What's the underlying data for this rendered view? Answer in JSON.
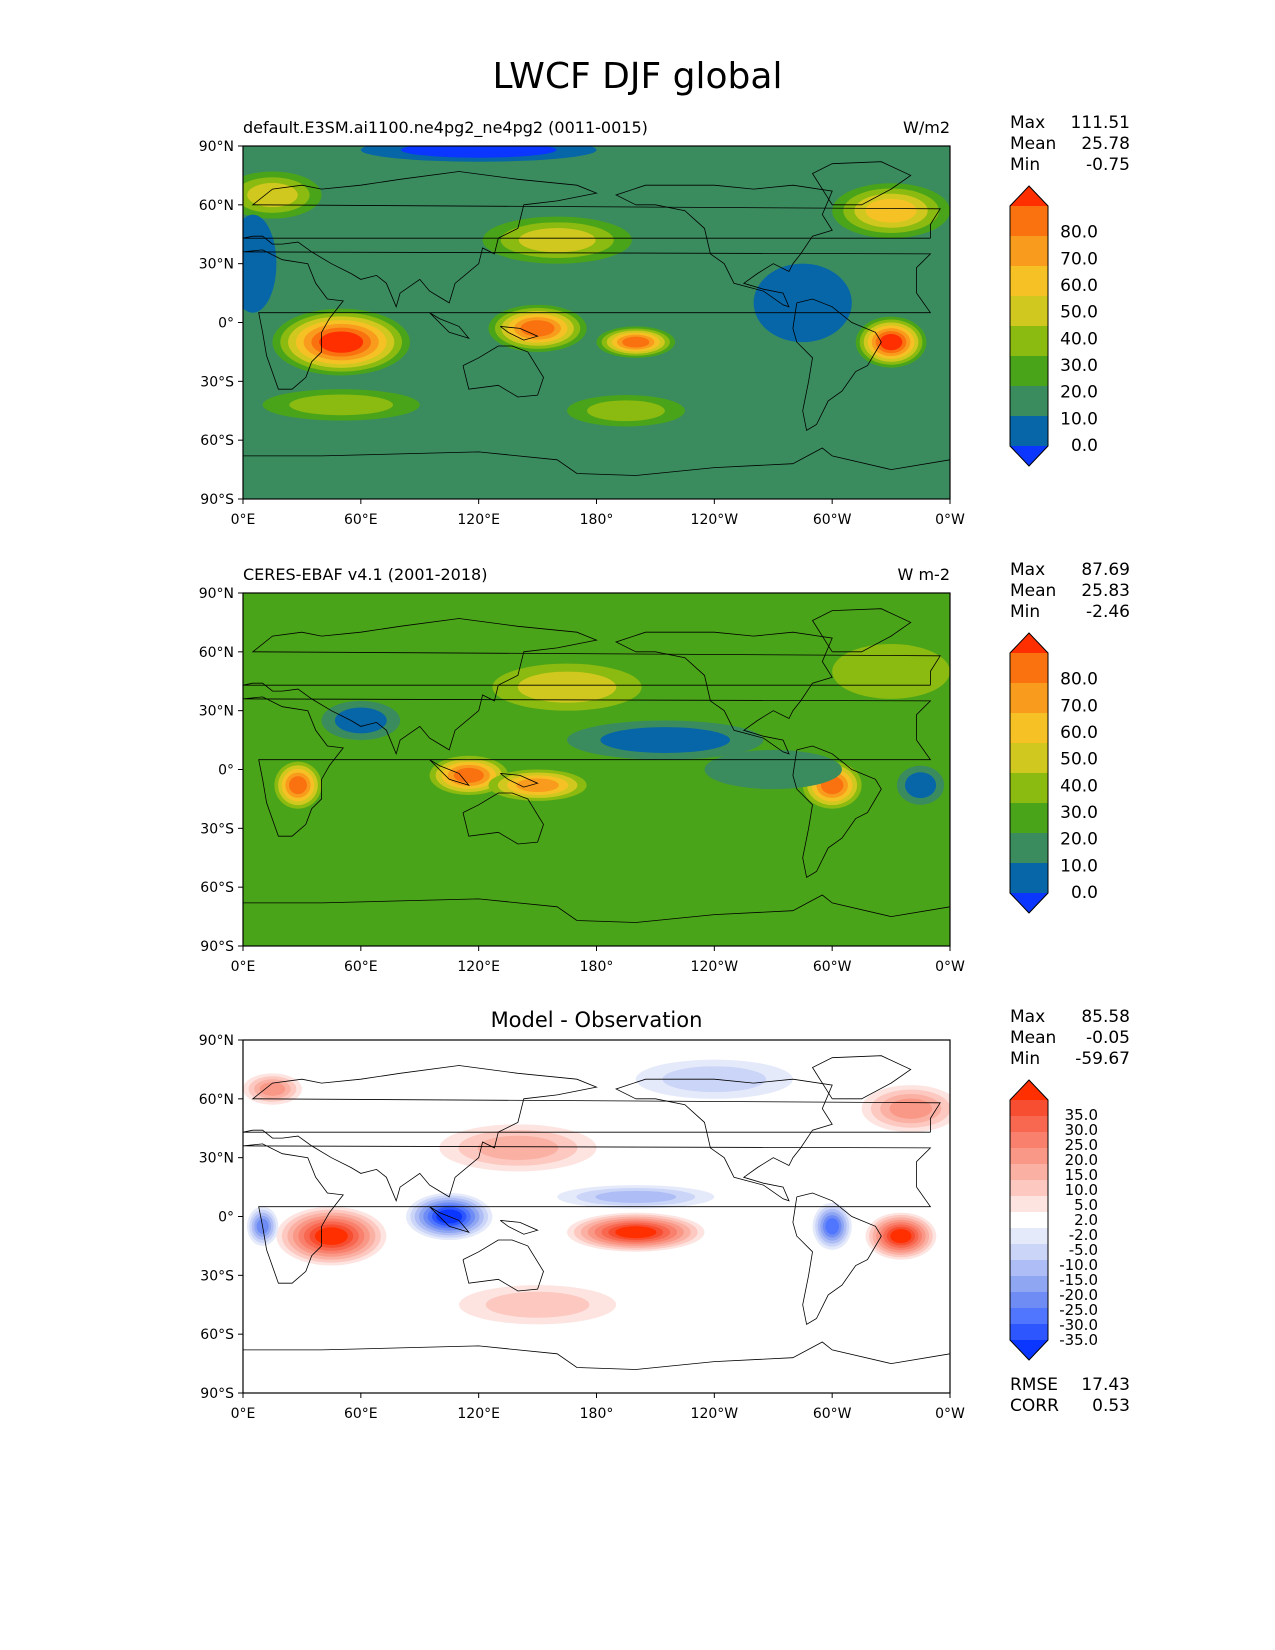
{
  "title": "LWCF DJF global",
  "colors": {
    "abs_levels": [
      "#0a36ff",
      "#0666a8",
      "#3a8c5e",
      "#4aa419",
      "#8bba10",
      "#d0c81e",
      "#f6c125",
      "#f99b1c",
      "#f9720f",
      "#ff2f00"
    ],
    "diff_levels": [
      "#0a36ff",
      "#2d56ff",
      "#5076ff",
      "#6f8cf5",
      "#8fa6f3",
      "#aebdf5",
      "#cbd5f8",
      "#e5eafb",
      "#ffffff",
      "#fde4e0",
      "#fcc8c0",
      "#fbb0a4",
      "#fa9888",
      "#f9806c",
      "#f86850",
      "#f74e32",
      "#ff2f00"
    ],
    "coastline": "#000000"
  },
  "chart_data": [
    {
      "type": "heatmap",
      "subtitle": "default.E3SM.ai1100.ne4pg2_ne4pg2 (0011-0015)",
      "units": "W/m2",
      "stats": [
        {
          "label": "Max",
          "value": "111.51"
        },
        {
          "label": "Mean",
          "value": "25.78"
        },
        {
          "label": "Min",
          "value": "-0.75"
        }
      ],
      "colorbar": {
        "labels": [
          "80.0",
          "70.0",
          "60.0",
          "50.0",
          "40.0",
          "30.0",
          "20.0",
          "10.0",
          "0.0"
        ],
        "extend": "both"
      },
      "xticks": [
        "0°E",
        "60°E",
        "120°E",
        "180°",
        "120°W",
        "60°W",
        "0°W"
      ],
      "yticks": [
        "90°N",
        "60°N",
        "30°N",
        "0°",
        "30°S",
        "60°S",
        "90°S"
      ],
      "xlim": [
        0,
        360
      ],
      "ylim": [
        -90,
        90
      ],
      "base_level": 2,
      "blobs": [
        {
          "lon": 50,
          "lat": -10,
          "rx": 35,
          "ry": 17,
          "level": 9
        },
        {
          "lon": 150,
          "lat": -3,
          "rx": 25,
          "ry": 12,
          "level": 8
        },
        {
          "lon": 200,
          "lat": -10,
          "rx": 20,
          "ry": 8,
          "level": 8
        },
        {
          "lon": 330,
          "lat": -10,
          "rx": 18,
          "ry": 13,
          "level": 9
        },
        {
          "lon": 160,
          "lat": 42,
          "rx": 38,
          "ry": 12,
          "level": 5
        },
        {
          "lon": 330,
          "lat": 57,
          "rx": 30,
          "ry": 14,
          "level": 6
        },
        {
          "lon": 15,
          "lat": 65,
          "rx": 25,
          "ry": 12,
          "level": 5
        },
        {
          "lon": 50,
          "lat": -42,
          "rx": 40,
          "ry": 8,
          "level": 4
        },
        {
          "lon": 195,
          "lat": -45,
          "rx": 30,
          "ry": 8,
          "level": 4
        },
        {
          "lon": 285,
          "lat": 10,
          "rx": 25,
          "ry": 20,
          "level": 1
        },
        {
          "lon": 5,
          "lat": 30,
          "rx": 12,
          "ry": 25,
          "level": 1
        },
        {
          "lon": 120,
          "lat": 88,
          "rx": 60,
          "ry": 6,
          "level": 0
        }
      ]
    },
    {
      "type": "heatmap",
      "subtitle": "CERES-EBAF v4.1 (2001-2018)",
      "units": "W m-2",
      "stats": [
        {
          "label": "Max",
          "value": "87.69"
        },
        {
          "label": "Mean",
          "value": "25.83"
        },
        {
          "label": "Min",
          "value": "-2.46"
        }
      ],
      "colorbar": {
        "labels": [
          "80.0",
          "70.0",
          "60.0",
          "50.0",
          "40.0",
          "30.0",
          "20.0",
          "10.0",
          "0.0"
        ],
        "extend": "both"
      },
      "xticks": [
        "0°E",
        "60°E",
        "120°E",
        "180°",
        "120°W",
        "60°W",
        "0°W"
      ],
      "yticks": [
        "90°N",
        "60°N",
        "30°N",
        "0°",
        "30°S",
        "60°S",
        "90°S"
      ],
      "xlim": [
        0,
        360
      ],
      "ylim": [
        -90,
        90
      ],
      "base_level": 3,
      "blobs": [
        {
          "lon": 28,
          "lat": -8,
          "rx": 12,
          "ry": 12,
          "level": 8
        },
        {
          "lon": 115,
          "lat": -3,
          "rx": 20,
          "ry": 10,
          "level": 8
        },
        {
          "lon": 150,
          "lat": -8,
          "rx": 25,
          "ry": 8,
          "level": 7
        },
        {
          "lon": 300,
          "lat": -8,
          "rx": 15,
          "ry": 12,
          "level": 8
        },
        {
          "lon": 165,
          "lat": 42,
          "rx": 38,
          "ry": 12,
          "level": 5
        },
        {
          "lon": 330,
          "lat": 50,
          "rx": 30,
          "ry": 14,
          "level": 4
        },
        {
          "lon": 215,
          "lat": 15,
          "rx": 50,
          "ry": 10,
          "level": 1
        },
        {
          "lon": 270,
          "lat": 0,
          "rx": 35,
          "ry": 10,
          "level": 2
        },
        {
          "lon": 345,
          "lat": -8,
          "rx": 12,
          "ry": 10,
          "level": 1
        },
        {
          "lon": 60,
          "lat": 25,
          "rx": 20,
          "ry": 10,
          "level": 1
        }
      ]
    },
    {
      "type": "heatmap",
      "subtitle": "Model - Observation",
      "units": "",
      "stats": [
        {
          "label": "Max",
          "value": "85.58"
        },
        {
          "label": "Mean",
          "value": "-0.05"
        },
        {
          "label": "Min",
          "value": "-59.67"
        }
      ],
      "extra_stats": [
        {
          "label": "RMSE",
          "value": "17.43"
        },
        {
          "label": "CORR",
          "value": "0.53"
        }
      ],
      "colorbar": {
        "labels": [
          "35.0",
          "30.0",
          "25.0",
          "20.0",
          "15.0",
          "10.0",
          "5.0",
          "2.0",
          "-2.0",
          "-5.0",
          "-10.0",
          "-15.0",
          "-20.0",
          "-25.0",
          "-30.0",
          "-35.0"
        ],
        "extend": "both"
      },
      "xticks": [
        "0°E",
        "60°E",
        "120°E",
        "180°",
        "120°W",
        "60°W",
        "0°W"
      ],
      "yticks": [
        "90°N",
        "60°N",
        "30°N",
        "0°",
        "30°S",
        "60°S",
        "90°S"
      ],
      "xlim": [
        0,
        360
      ],
      "ylim": [
        -90,
        90
      ],
      "base_level": 8,
      "blobs": [
        {
          "lon": 45,
          "lat": -10,
          "rx": 28,
          "ry": 15,
          "level": 16
        },
        {
          "lon": 200,
          "lat": -8,
          "rx": 35,
          "ry": 10,
          "level": 16
        },
        {
          "lon": 335,
          "lat": -10,
          "rx": 18,
          "ry": 12,
          "level": 16
        },
        {
          "lon": 105,
          "lat": 0,
          "rx": 22,
          "ry": 12,
          "level": 0
        },
        {
          "lon": 300,
          "lat": -5,
          "rx": 10,
          "ry": 12,
          "level": 2
        },
        {
          "lon": 10,
          "lat": -5,
          "rx": 8,
          "ry": 10,
          "level": 3
        },
        {
          "lon": 140,
          "lat": 35,
          "rx": 40,
          "ry": 12,
          "level": 11
        },
        {
          "lon": 340,
          "lat": 55,
          "rx": 25,
          "ry": 12,
          "level": 12
        },
        {
          "lon": 15,
          "lat": 65,
          "rx": 15,
          "ry": 8,
          "level": 12
        },
        {
          "lon": 200,
          "lat": 10,
          "rx": 40,
          "ry": 6,
          "level": 5
        },
        {
          "lon": 240,
          "lat": 70,
          "rx": 40,
          "ry": 10,
          "level": 6
        },
        {
          "lon": 150,
          "lat": -45,
          "rx": 40,
          "ry": 10,
          "level": 10
        }
      ]
    }
  ]
}
